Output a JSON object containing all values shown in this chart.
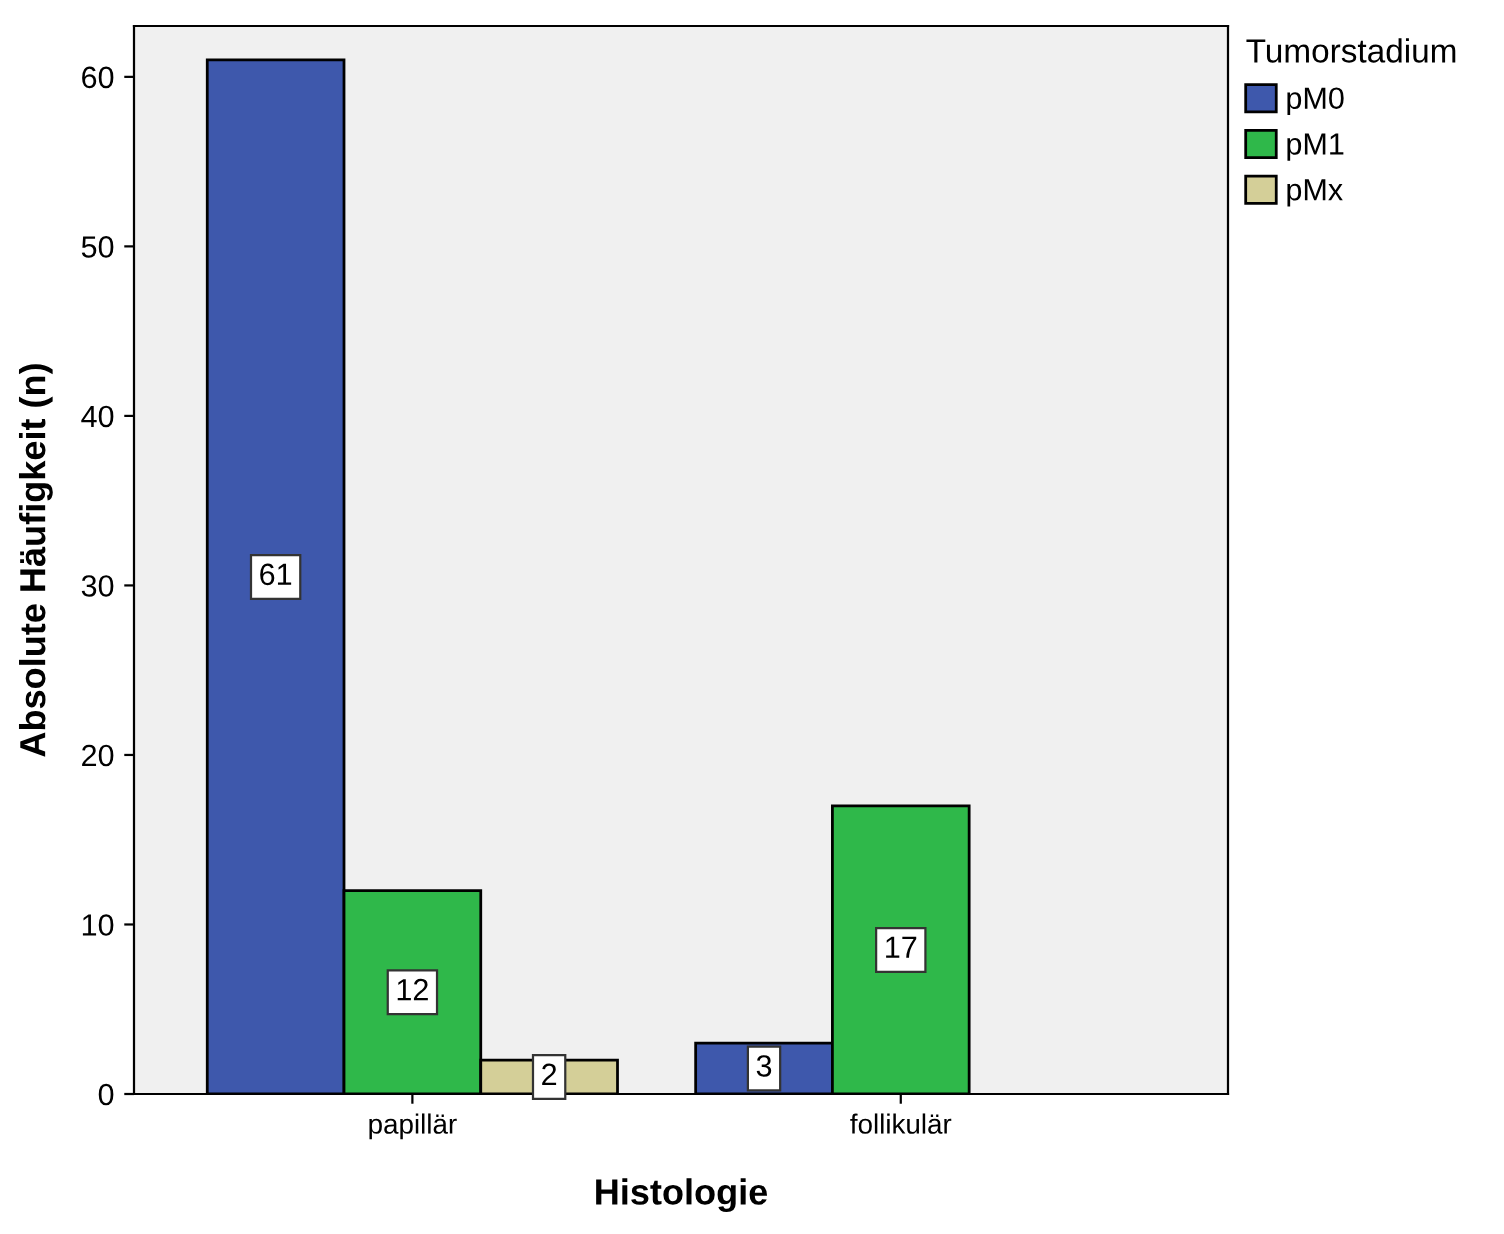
{
  "chart_data": {
    "type": "bar",
    "xlabel": "Histologie",
    "ylabel": "Absolute Häufigkeit (n)",
    "legend_title": "Tumorstadium",
    "categories": [
      "papillär",
      "follikulär"
    ],
    "series": [
      {
        "name": "pM0",
        "color": "#3e58ac",
        "values": [
          61,
          3
        ]
      },
      {
        "name": "pM1",
        "color": "#2fb84a",
        "values": [
          12,
          17
        ]
      },
      {
        "name": "pMx",
        "color": "#d4cf98",
        "values": [
          2,
          null
        ]
      }
    ],
    "ylim": [
      0,
      63
    ],
    "yticks": [
      0,
      10,
      20,
      30,
      40,
      50,
      60
    ],
    "grid": false,
    "legend": "top right",
    "data_labels": true
  }
}
